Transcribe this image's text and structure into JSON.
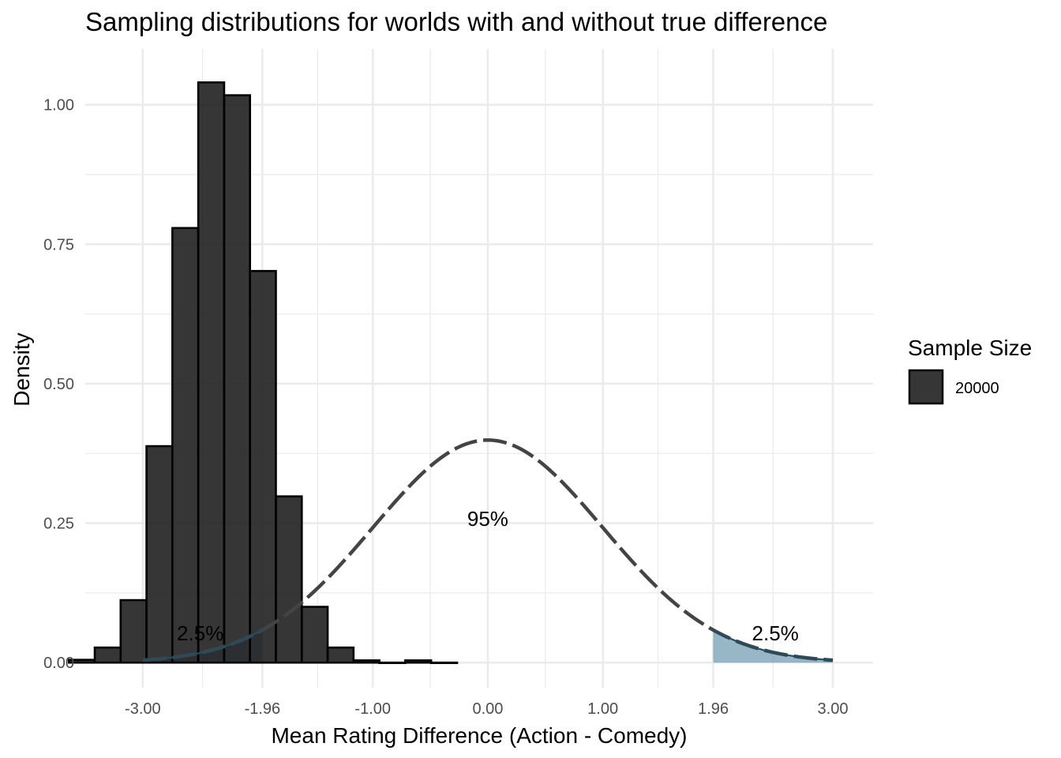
{
  "chart_data": {
    "type": "bar",
    "title": "Sampling distributions for worlds with and without true difference",
    "xlabel": "Mean Rating Difference (Action - Comedy)",
    "ylabel": "Density",
    "xlim": [
      -3.5,
      3.35
    ],
    "ylim": [
      -0.045,
      1.1
    ],
    "x_ticks": [
      -3.0,
      -1.96,
      -1.0,
      0.0,
      1.0,
      1.96,
      3.0
    ],
    "x_tick_labels": [
      "-3.00",
      "-1.96",
      "-1.00",
      "0.00",
      "1.00",
      "1.96",
      "3.00"
    ],
    "y_ticks": [
      0.0,
      0.25,
      0.5,
      0.75,
      1.0
    ],
    "y_tick_labels": [
      "0.00",
      "0.25",
      "0.50",
      "0.75",
      "1.00"
    ],
    "grid": true,
    "histogram": {
      "bin_width": 0.225,
      "bins": [
        {
          "center": -3.53,
          "density": 0.005
        },
        {
          "center": -3.305,
          "density": 0.027
        },
        {
          "center": -3.08,
          "density": 0.112
        },
        {
          "center": -2.855,
          "density": 0.388
        },
        {
          "center": -2.63,
          "density": 0.779
        },
        {
          "center": -2.405,
          "density": 1.04
        },
        {
          "center": -2.18,
          "density": 1.017
        },
        {
          "center": -1.955,
          "density": 0.702
        },
        {
          "center": -1.73,
          "density": 0.298
        },
        {
          "center": -1.505,
          "density": 0.1
        },
        {
          "center": -1.28,
          "density": 0.027
        },
        {
          "center": -1.055,
          "density": 0.004
        },
        {
          "center": -0.83,
          "density": 0.0
        },
        {
          "center": -0.605,
          "density": 0.004
        },
        {
          "center": -0.38,
          "density": 0.0
        }
      ],
      "fill": "#202020",
      "stroke": "#000000"
    },
    "null_curve": {
      "distribution": "standard normal",
      "mean": 0,
      "sd": 1,
      "x_range": [
        -3.0,
        3.0
      ],
      "critical_values": [
        -1.96,
        1.96
      ],
      "tail_fill": "#5f8fa8",
      "line_color": "#444444"
    },
    "annotations": [
      {
        "text": "2.5%",
        "x": -2.5,
        "y": 0.04
      },
      {
        "text": "95%",
        "x": 0.0,
        "y": 0.245
      },
      {
        "text": "2.5%",
        "x": 2.5,
        "y": 0.04
      }
    ],
    "legend": {
      "position": "right",
      "title": "Sample Size",
      "items": [
        {
          "label": "20000",
          "color": "#202020"
        }
      ]
    }
  }
}
